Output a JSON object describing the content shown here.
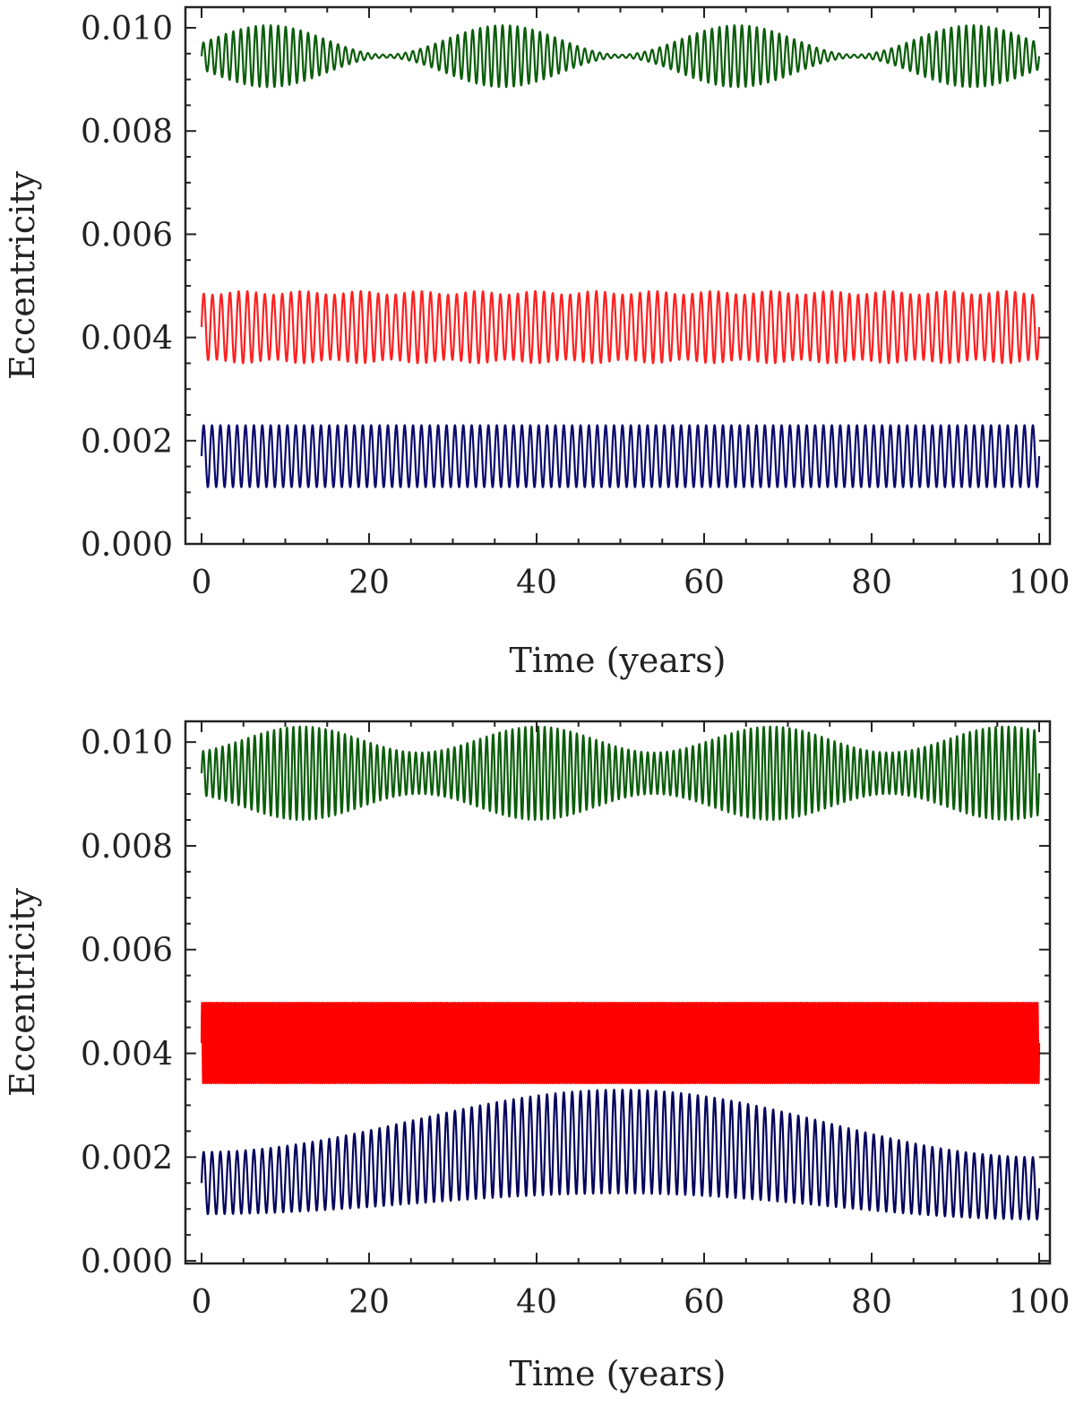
{
  "chart_data": [
    {
      "type": "line",
      "panel": "top",
      "xlabel": "Time (years)",
      "ylabel": "Eccentricity",
      "xlim": [
        0,
        100
      ],
      "ylim": [
        0.0,
        0.0104
      ],
      "x_ticks": [
        0,
        20,
        40,
        60,
        80,
        100
      ],
      "x_tick_labels": [
        "0",
        "20",
        "40",
        "60",
        "80",
        "100"
      ],
      "y_ticks": [
        0.0,
        0.002,
        0.004,
        0.006,
        0.008,
        0.01
      ],
      "y_tick_labels": [
        "0.000",
        "0.002",
        "0.004",
        "0.006",
        "0.008",
        "0.010"
      ],
      "grid": false,
      "legend": "none",
      "series": [
        {
          "color": "#0b5d0b",
          "mean": 0.00945,
          "amplitude_max": 0.0006,
          "amplitude_min": 3e-05,
          "envelope_period_years": 28,
          "envelope_peak_years": [
            8,
            37,
            66,
            95
          ],
          "oscillation_cycles": 112
        },
        {
          "color": "#ff2020",
          "mean": 0.0042,
          "amplitude_max": 0.0007,
          "amplitude_min": 0.00063,
          "envelope_period_years": 7,
          "envelope_peak_years": [
            5,
            12,
            19,
            26,
            33,
            40,
            47,
            54,
            61,
            68,
            75,
            82,
            89,
            96
          ],
          "oscillation_cycles": 96
        },
        {
          "color": "#0a0a6e",
          "mean": 0.0017,
          "amplitude_max": 0.0006,
          "amplitude_min": 0.0006,
          "envelope_period_years": 100,
          "envelope_peak_years": [],
          "oscillation_cycles": 100
        }
      ]
    },
    {
      "type": "line",
      "panel": "bottom",
      "xlabel": "Time (years)",
      "ylabel": "Eccentricity",
      "xlim": [
        0,
        100
      ],
      "ylim": [
        -5e-05,
        0.0104
      ],
      "x_ticks": [
        0,
        20,
        40,
        60,
        80,
        100
      ],
      "x_tick_labels": [
        "0",
        "20",
        "40",
        "60",
        "80",
        "100"
      ],
      "y_ticks": [
        0.0,
        0.002,
        0.004,
        0.006,
        0.008,
        0.01
      ],
      "y_tick_labels": [
        "0.000",
        "0.002",
        "0.004",
        "0.006",
        "0.008",
        "0.010"
      ],
      "grid": false,
      "legend": "none",
      "series": [
        {
          "color": "#0b5d0b",
          "mean": 0.0094,
          "amplitude_max": 0.0009,
          "amplitude_min": 0.0004,
          "envelope_period_years": 28,
          "envelope_peak_years": [
            12,
            40,
            68,
            96
          ],
          "oscillation_cycles": 130
        },
        {
          "color": "#ff0000",
          "mean": 0.0042,
          "amplitude_max": 0.00078,
          "amplitude_min": 0.00078,
          "envelope_period_years": 100,
          "envelope_peak_years": [],
          "oscillation_cycles": 400
        },
        {
          "color": "#04045e",
          "mean": 0.00175,
          "amplitude_max": 0.001,
          "amplitude_min": 0.0006,
          "envelope_period_years": 100,
          "envelope_peak_years": [
            50
          ],
          "mean_curve": [
            [
              0,
              0.0015
            ],
            [
              50,
              0.0023
            ],
            [
              100,
              0.0014
            ]
          ],
          "oscillation_cycles": 100
        }
      ]
    }
  ]
}
